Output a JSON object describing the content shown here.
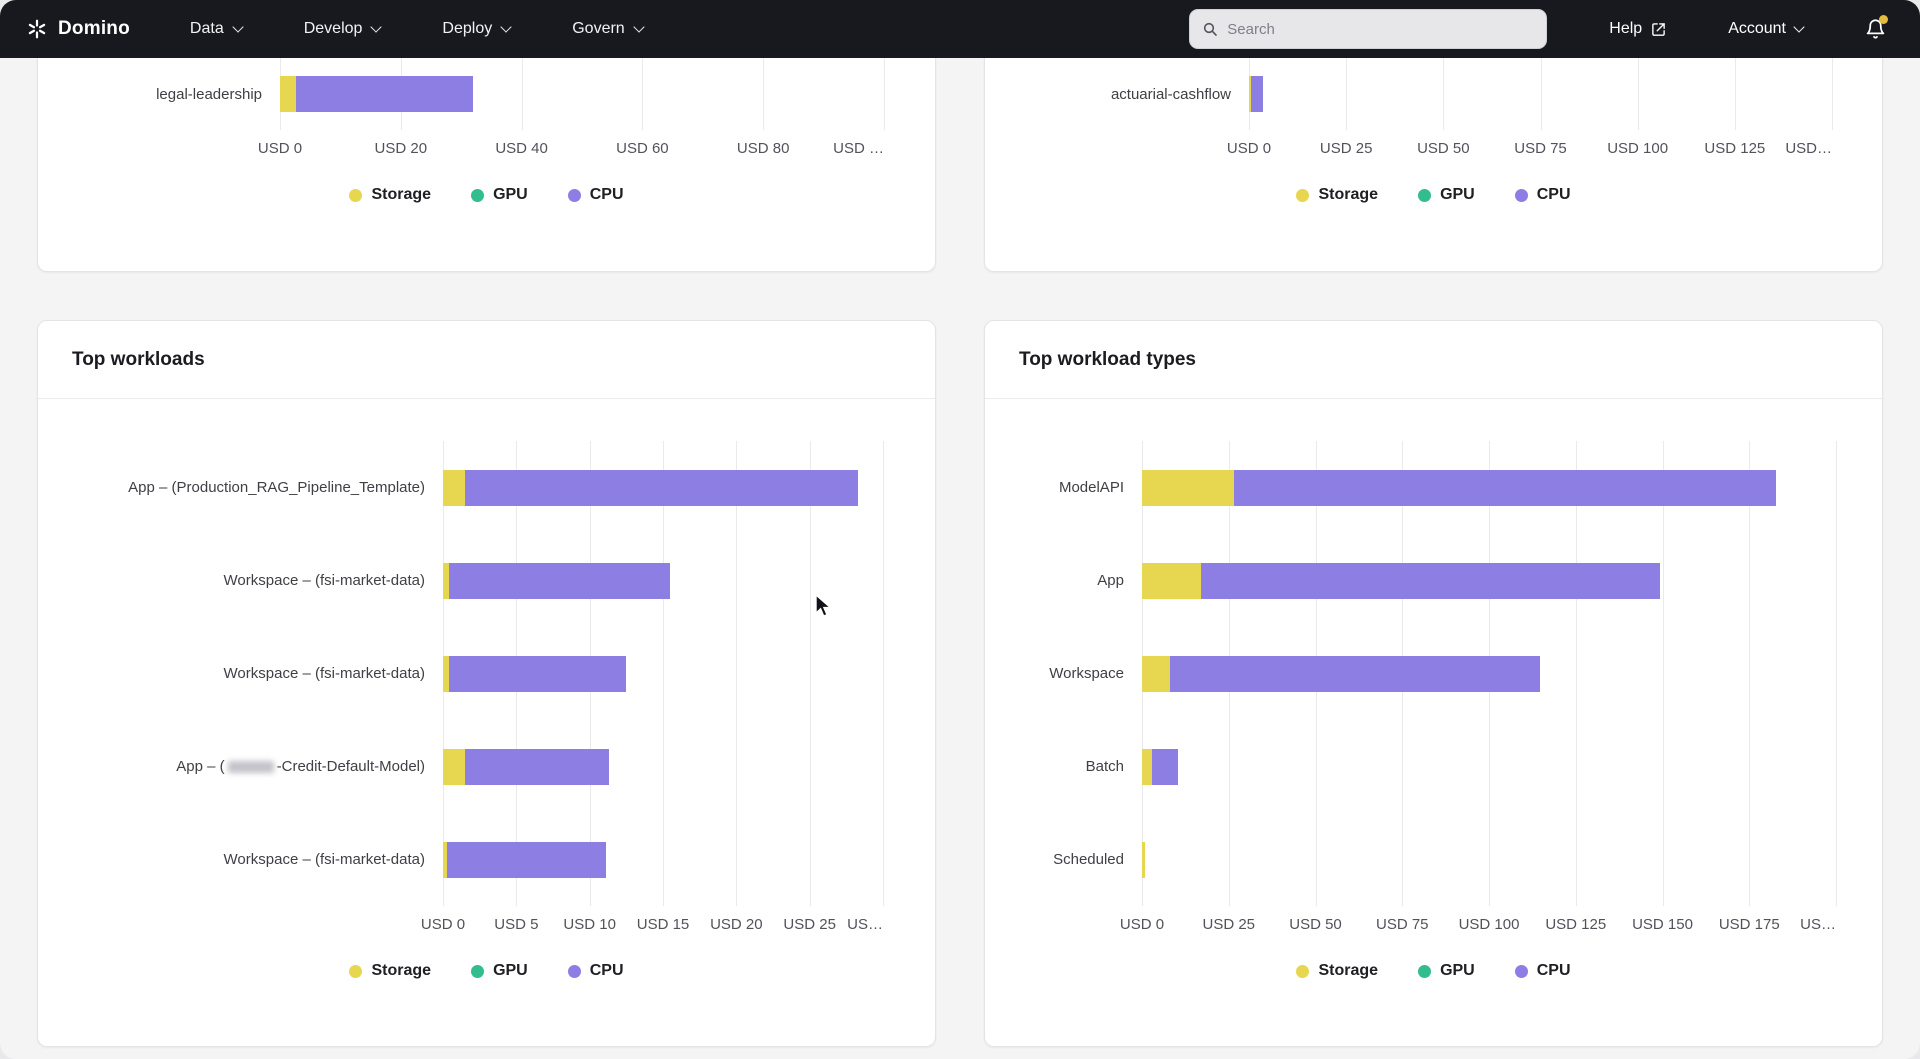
{
  "navbar": {
    "brand": "Domino",
    "menus": [
      {
        "label": "Data"
      },
      {
        "label": "Develop"
      },
      {
        "label": "Deploy"
      },
      {
        "label": "Govern"
      }
    ],
    "search": {
      "placeholder": "Search"
    },
    "help_label": "Help",
    "account_label": "Account",
    "notification_dot_color": "#e3bb3f"
  },
  "legend": {
    "items": [
      {
        "key": "storage",
        "label": "Storage",
        "color": "#e7d64f"
      },
      {
        "key": "gpu",
        "label": "GPU",
        "color": "#32bd8c"
      },
      {
        "key": "cpu",
        "label": "CPU",
        "color": "#8d7ee3"
      }
    ]
  },
  "chart_data": {
    "top_left": {
      "type": "bar",
      "orientation": "horizontal",
      "unit": "USD",
      "axis_max": 100,
      "ticks": [
        {
          "label": "USD 0",
          "value": 0
        },
        {
          "label": "USD 20",
          "value": 20
        },
        {
          "label": "USD 40",
          "value": 40
        },
        {
          "label": "USD 60",
          "value": 60
        },
        {
          "label": "USD 80",
          "value": 80
        },
        {
          "label": "USD …",
          "value": 100,
          "align": "end"
        }
      ],
      "rows": [
        {
          "label_parts": [
            {
              "text": "legal-leadership"
            }
          ],
          "storage": 2.6,
          "gpu": 0,
          "cpu": 29.4
        }
      ]
    },
    "top_right": {
      "type": "bar",
      "orientation": "horizontal",
      "unit": "USD",
      "axis_max": 150,
      "ticks": [
        {
          "label": "USD 0",
          "value": 0
        },
        {
          "label": "USD 25",
          "value": 25
        },
        {
          "label": "USD 50",
          "value": 50
        },
        {
          "label": "USD 75",
          "value": 75
        },
        {
          "label": "USD 100",
          "value": 100
        },
        {
          "label": "USD 125",
          "value": 125
        },
        {
          "label": "USD…",
          "value": 150,
          "align": "end"
        }
      ],
      "rows": [
        {
          "label_parts": [
            {
              "text": "actuarial-cashflow"
            }
          ],
          "storage": 0.5,
          "gpu": 0,
          "cpu": 3.0
        }
      ]
    },
    "workloads": {
      "title": "Top workloads",
      "type": "bar",
      "orientation": "horizontal",
      "unit": "USD",
      "axis_max": 30,
      "ticks": [
        {
          "label": "USD 0",
          "value": 0
        },
        {
          "label": "USD 5",
          "value": 5
        },
        {
          "label": "USD 10",
          "value": 10
        },
        {
          "label": "USD 15",
          "value": 15
        },
        {
          "label": "USD 20",
          "value": 20
        },
        {
          "label": "USD 25",
          "value": 25
        },
        {
          "label": "US…",
          "value": 30,
          "align": "end"
        }
      ],
      "rows": [
        {
          "label_parts": [
            {
              "text": "App – (Production_RAG_Pipeline_Template)"
            }
          ],
          "storage": 1.5,
          "gpu": 0,
          "cpu": 26.8
        },
        {
          "label_parts": [
            {
              "text": "Workspace – (fsi-market-data)"
            }
          ],
          "storage": 0.4,
          "gpu": 0,
          "cpu": 15.1
        },
        {
          "label_parts": [
            {
              "text": "Workspace – (fsi-market-data)"
            }
          ],
          "storage": 0.4,
          "gpu": 0,
          "cpu": 12.1
        },
        {
          "label_parts": [
            {
              "text": "App – ("
            },
            {
              "text": "",
              "redacted": true
            },
            {
              "text": "-Credit-Default-Model)"
            }
          ],
          "storage": 1.5,
          "gpu": 0,
          "cpu": 9.8
        },
        {
          "label_parts": [
            {
              "text": "Workspace – (fsi-market-data)"
            }
          ],
          "storage": 0.3,
          "gpu": 0,
          "cpu": 10.8
        }
      ]
    },
    "workload_types": {
      "title": "Top workload types",
      "type": "bar",
      "orientation": "horizontal",
      "unit": "USD",
      "axis_max": 200,
      "ticks": [
        {
          "label": "USD 0",
          "value": 0
        },
        {
          "label": "USD 25",
          "value": 25
        },
        {
          "label": "USD 50",
          "value": 50
        },
        {
          "label": "USD 75",
          "value": 75
        },
        {
          "label": "USD 100",
          "value": 100
        },
        {
          "label": "USD 125",
          "value": 125
        },
        {
          "label": "USD 150",
          "value": 150
        },
        {
          "label": "USD 175",
          "value": 175
        },
        {
          "label": "US…",
          "value": 200,
          "align": "end"
        }
      ],
      "rows": [
        {
          "label_parts": [
            {
              "text": "ModelAPI"
            }
          ],
          "storage": 26.4,
          "gpu": 0,
          "cpu": 156.3
        },
        {
          "label_parts": [
            {
              "text": "App"
            }
          ],
          "storage": 16.9,
          "gpu": 0,
          "cpu": 132.4
        },
        {
          "label_parts": [
            {
              "text": "Workspace"
            }
          ],
          "storage": 8.1,
          "gpu": 0,
          "cpu": 106.7
        },
        {
          "label_parts": [
            {
              "text": "Batch"
            }
          ],
          "storage": 2.8,
          "gpu": 0,
          "cpu": 7.7
        },
        {
          "label_parts": [
            {
              "text": "Scheduled"
            }
          ],
          "storage": 1.0,
          "gpu": 0,
          "cpu": 0
        }
      ]
    }
  }
}
